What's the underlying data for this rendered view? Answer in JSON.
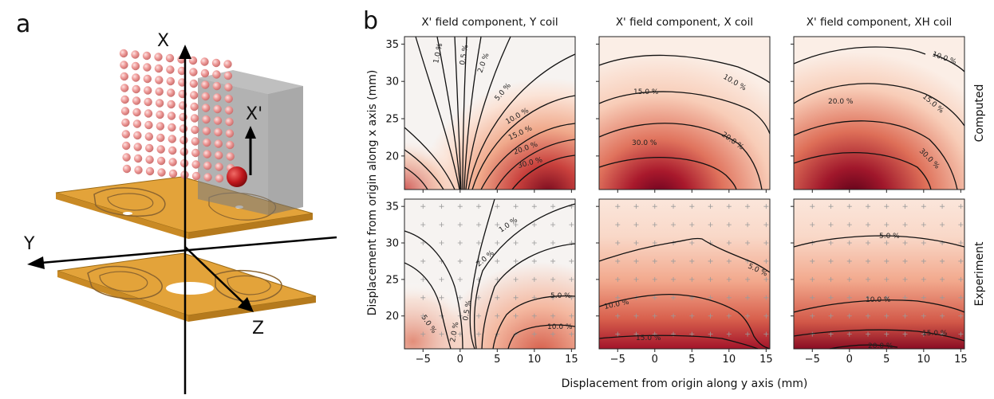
{
  "panels": {
    "a_label": "a",
    "b_label": "b"
  },
  "panel_a": {
    "axes": {
      "x": "X",
      "y": "Y",
      "z": "Z",
      "xprime": "X'"
    },
    "colors": {
      "pcb": "#E3A33A",
      "pcb_edge": "#9B6B17",
      "trace": "#8C6530",
      "sphere": "#E98B89",
      "box": "#7F7F7F",
      "atom": "#B5161B"
    }
  },
  "panel_b": {
    "row_labels": [
      "Computed",
      "Experiment"
    ],
    "xlabel": "Displacement from origin along y axis (mm)",
    "ylabel": "Displacement from origin along x axis (mm)"
  },
  "chart_data": [
    {
      "type": "heatmap",
      "title": "X' field component, Y coil",
      "row": "Computed",
      "x_range": [
        -7.5,
        15.5
      ],
      "y_range": [
        15.5,
        36
      ],
      "x_ticks": [
        -5,
        0,
        5,
        10,
        15
      ],
      "y_ticks": [
        20,
        25,
        30,
        35
      ],
      "contours": [
        "1.0 %",
        "0.5 %",
        "2.0 %",
        "5.0 %",
        "10.0 %",
        "15.0 %",
        "20.0 %",
        "30.0 %"
      ]
    },
    {
      "type": "heatmap",
      "title": "X' field component, X coil",
      "row": "Computed",
      "x_range": [
        -7.5,
        15.5
      ],
      "y_range": [
        15.5,
        36
      ],
      "x_ticks": [
        -5,
        0,
        5,
        10,
        15
      ],
      "y_ticks": [
        20,
        25,
        30,
        35
      ],
      "contours": [
        "10.0 %",
        "15.0 %",
        "20.0 %",
        "30.0 %"
      ]
    },
    {
      "type": "heatmap",
      "title": "X' field component, XH coil",
      "row": "Computed",
      "x_range": [
        -7.5,
        15.5
      ],
      "y_range": [
        15.5,
        36
      ],
      "x_ticks": [
        -5,
        0,
        5,
        10,
        15
      ],
      "y_ticks": [
        20,
        25,
        30,
        35
      ],
      "contours": [
        "10.0 %",
        "20.0 %",
        "15.0 %",
        "30.0 %"
      ]
    },
    {
      "type": "heatmap",
      "title": "",
      "row": "Experiment",
      "x_range": [
        -7.5,
        15.5
      ],
      "y_range": [
        15.5,
        36
      ],
      "x_ticks": [
        -5,
        0,
        5,
        10,
        15
      ],
      "y_ticks": [
        20,
        25,
        30,
        35
      ],
      "contours": [
        "1.0 %",
        "2.0 %",
        "0.5 %",
        "5.0 %",
        "10.0 %",
        "5.0 %",
        "2.0 %"
      ]
    },
    {
      "type": "heatmap",
      "title": "",
      "row": "Experiment",
      "x_range": [
        -7.5,
        15.5
      ],
      "y_range": [
        15.5,
        36
      ],
      "x_ticks": [
        -5,
        0,
        5,
        10,
        15
      ],
      "y_ticks": [
        20,
        25,
        30,
        35
      ],
      "contours": [
        "5.0 %",
        "10.0 %",
        "15.0 %"
      ]
    },
    {
      "type": "heatmap",
      "title": "",
      "row": "Experiment",
      "x_range": [
        -7.5,
        15.5
      ],
      "y_range": [
        15.5,
        36
      ],
      "x_ticks": [
        -5,
        0,
        5,
        10,
        15
      ],
      "y_ticks": [
        20,
        25,
        30,
        35
      ],
      "contours": [
        "5.0 %",
        "10.0 %",
        "15.0 %",
        "20.0 %"
      ]
    }
  ]
}
